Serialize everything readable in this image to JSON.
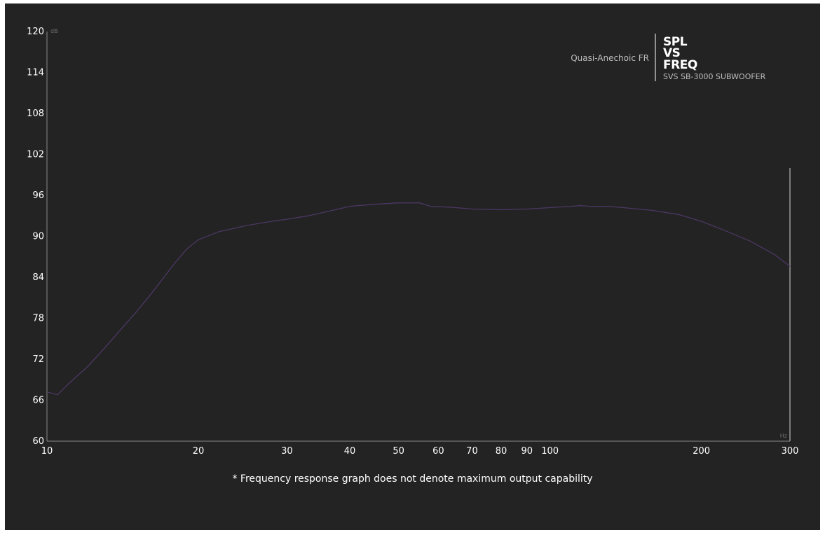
{
  "chart_data": {
    "type": "line",
    "subtitle": "Quasi-Anechoic FR",
    "logo": [
      "SPL",
      "VS",
      "FREQ"
    ],
    "model": "SVS SB-3000 SUBWOOFER",
    "ylabel": "dB",
    "xlabel": "Hz",
    "x_scale": "log",
    "xlim": [
      10,
      300
    ],
    "ylim": [
      60,
      120
    ],
    "y_ticks": [
      60,
      66,
      72,
      78,
      84,
      90,
      96,
      102,
      108,
      114,
      120
    ],
    "x_ticks": [
      10,
      20,
      30,
      40,
      50,
      60,
      70,
      80,
      90,
      100,
      200,
      300
    ],
    "grid": false,
    "line_color": "#4b3763",
    "series": [
      {
        "x": [
          10,
          10.5,
          11,
          11.5,
          12,
          12.5,
          13,
          14,
          15,
          16,
          17,
          18,
          19,
          20,
          22,
          25,
          28,
          30,
          33,
          35,
          38,
          40,
          45,
          50,
          55,
          58,
          62,
          65,
          70,
          80,
          90,
          100,
          110,
          115,
          120,
          130,
          140,
          160,
          180,
          200,
          220,
          250,
          280,
          300
        ],
        "y": [
          67.2,
          66.8,
          68.3,
          69.6,
          70.8,
          72.2,
          73.6,
          76.3,
          78.8,
          81.3,
          83.8,
          86.2,
          88.2,
          89.5,
          90.7,
          91.6,
          92.2,
          92.5,
          93.0,
          93.4,
          94.0,
          94.4,
          94.7,
          94.9,
          94.9,
          94.4,
          94.3,
          94.2,
          94.0,
          93.9,
          94.0,
          94.2,
          94.4,
          94.5,
          94.4,
          94.4,
          94.2,
          93.8,
          93.2,
          92.2,
          91.0,
          89.3,
          87.3,
          85.6
        ]
      }
    ]
  },
  "footnote": "* Frequency response graph does not denote maximum output capability",
  "colors": {
    "background": "#232323",
    "axis": "#8a8a8a",
    "text": "#ffffff"
  }
}
